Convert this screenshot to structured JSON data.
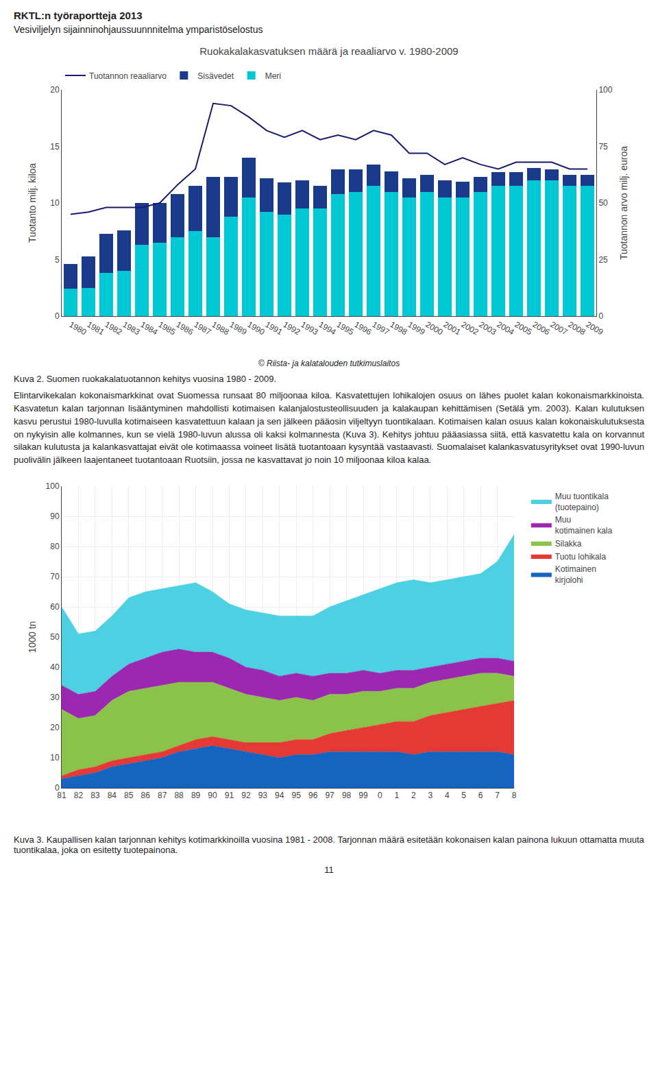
{
  "title": "RKTL:n työraportteja 2013",
  "subtitle": "Vesiviljelyn sijainninohjaussuunnnitelma ymparistöselostus",
  "annotations": [
    "Kuva 2. Suomen ruokakalatuotannon kehitys vuosina 1980 - 2009.",
    "Elintarvikekalan kokonaismarkkinat ovat Suomessa runsaat 80 miljoonaa kiloa. Kasvatettujen lohikalojen osuus on lähes puolet kalan kokonaismarkkinoista. Kasvatetun kalan tarjonnan lisääntyminen mahdollisti kotimaisen kalanjalostusteollisuuden ja kalakaupan kehittämisen (Setälä ym. 2003).  Kalan kulutuksen kasvu perustui 1980-luvulla kotimaiseen kasvatettuun kalaan ja sen jälkeen pääosin viljeltyyn tuontikalaan. Kotimaisen kalan osuus kalan kokonaiskulutuksesta on nykyisin alle kolmannes, kun se vielä 1980-luvun alussa oli kaksi kolmannesta (Kuva 3). Kehitys johtuu pääasiassa siitä, että kasvatettu kala on korvannut silakan kulutusta ja kalankasvattajat eivät ole kotimaassa voineet lisätä tuotantoaan kysyntää vastaavasti. Suomalaiset kalankasvatusyritykset ovat 1990-luvun puolivälin jälkeen laajentaneet tuotantoaan Ruotsiin, jossa ne kasvattavat jo noin 10 miljoonaa kiloa kalaa.",
    "Kuva 3. Kaupallisen kalan tarjonnan kehitys kotimarkkinoilla vuosina 1981 - 2008. Tarjonnan määrä esitetään kokonaisen kalan painona lukuun ottamatta muuta tuontikalaa, joka on esitetty tuotepainona.",
    "11"
  ],
  "chart_data": [
    {
      "type": "bar",
      "title": "Ruokakalakasvatuksen määrä ja reaaliarvo v. 1980-2009",
      "categories": [
        "1980",
        "1981",
        "1982",
        "1983",
        "1984",
        "1985",
        "1986",
        "1987",
        "1988",
        "1989",
        "1990",
        "1991",
        "1992",
        "1993",
        "1994",
        "1995",
        "1996",
        "1997",
        "1998",
        "1999",
        "2000",
        "2001",
        "2002",
        "2003",
        "2004",
        "2005",
        "2006",
        "2007",
        "2008",
        "2009"
      ],
      "stacked": true,
      "series": [
        {
          "name": "Meri",
          "color": "#00c8d4",
          "values": [
            2.4,
            2.5,
            3.8,
            4.0,
            6.3,
            6.5,
            7.0,
            7.5,
            7.0,
            8.8,
            10.5,
            9.2,
            9.0,
            9.5,
            9.5,
            10.8,
            11.0,
            11.5,
            11.0,
            10.5,
            11.0,
            10.5,
            10.5,
            11.0,
            11.5,
            11.5,
            12.0,
            12.0,
            11.5,
            11.5
          ]
        },
        {
          "name": "Sisävedet",
          "color": "#1a3a8c",
          "values": [
            2.2,
            2.8,
            3.5,
            3.6,
            3.7,
            3.5,
            3.8,
            4.0,
            5.3,
            3.5,
            3.5,
            3.0,
            2.8,
            2.5,
            2.0,
            2.2,
            2.0,
            1.9,
            1.8,
            1.7,
            1.5,
            1.5,
            1.4,
            1.3,
            1.2,
            1.2,
            1.1,
            1.0,
            1.0,
            1.0
          ]
        },
        {
          "name": "Tuotannon reaaliarvo",
          "type": "line",
          "axis": "y2",
          "color": "#1a1a6e",
          "values": [
            45,
            46,
            48,
            48,
            48,
            50,
            58,
            65,
            94,
            93,
            88,
            82,
            79,
            82,
            78,
            80,
            78,
            82,
            80,
            72,
            72,
            67,
            70,
            67,
            65,
            68,
            68,
            68,
            65,
            65
          ]
        }
      ],
      "ylabel": "Tuotanto milj. kiloa",
      "y2label": "Tuotannon arvo milj. euroa",
      "ylim": [
        0,
        20
      ],
      "yticks": [
        0,
        5,
        10,
        15,
        20
      ],
      "y2lim": [
        0,
        100
      ],
      "y2ticks": [
        0,
        25,
        50,
        75,
        100
      ],
      "grid": false,
      "legend": "upper left",
      "annotations": [
        "© Riista- ja kalatalouden tutkimuslaitos"
      ]
    },
    {
      "type": "area",
      "categories": [
        "81",
        "82",
        "83",
        "84",
        "85",
        "86",
        "87",
        "88",
        "89",
        "90",
        "91",
        "92",
        "93",
        "94",
        "95",
        "96",
        "97",
        "98",
        "99",
        "0",
        "1",
        "2",
        "3",
        "4",
        "5",
        "6",
        "7",
        "8"
      ],
      "stacked": true,
      "series": [
        {
          "name": "Kotimainen\nkirjolohi",
          "color": "#1565c0",
          "values": [
            3,
            4,
            5,
            7,
            8,
            9,
            10,
            12,
            13,
            14,
            13,
            12,
            11,
            10,
            11,
            11,
            12,
            12,
            12,
            12,
            12,
            11,
            12,
            12,
            12,
            12,
            12,
            11
          ]
        },
        {
          "name": "Tuotu lohikala",
          "color": "#e53935",
          "values": [
            1,
            2,
            2,
            2,
            2,
            2,
            2,
            2,
            3,
            3,
            3,
            3,
            4,
            5,
            5,
            5,
            6,
            7,
            8,
            9,
            10,
            11,
            12,
            13,
            14,
            15,
            16,
            18
          ]
        },
        {
          "name": "Silakka",
          "color": "#8bc34a",
          "values": [
            22,
            17,
            17,
            20,
            22,
            22,
            22,
            21,
            19,
            18,
            17,
            16,
            15,
            14,
            14,
            13,
            13,
            12,
            12,
            11,
            11,
            11,
            11,
            11,
            11,
            11,
            10,
            8
          ]
        },
        {
          "name": "Muu\nkotimainen kala",
          "color": "#9c27b0",
          "values": [
            8,
            8,
            8,
            8,
            9,
            10,
            11,
            11,
            10,
            10,
            10,
            9,
            9,
            8,
            8,
            8,
            7,
            7,
            7,
            6,
            6,
            6,
            5,
            5,
            5,
            5,
            5,
            5
          ]
        },
        {
          "name": "Muu tuontikala\n(tuotepaino)",
          "color": "#4dd0e1",
          "values": [
            26,
            20,
            20,
            20,
            22,
            22,
            21,
            21,
            23,
            20,
            18,
            19,
            19,
            20,
            19,
            20,
            22,
            24,
            25,
            28,
            29,
            30,
            28,
            28,
            28,
            28,
            32,
            42
          ]
        }
      ],
      "ylabel": "1000 tn",
      "ylim": [
        0,
        100
      ],
      "yticks": [
        0,
        10,
        20,
        30,
        40,
        50,
        60,
        70,
        80,
        90,
        100
      ],
      "grid": true,
      "legend": "right"
    }
  ]
}
